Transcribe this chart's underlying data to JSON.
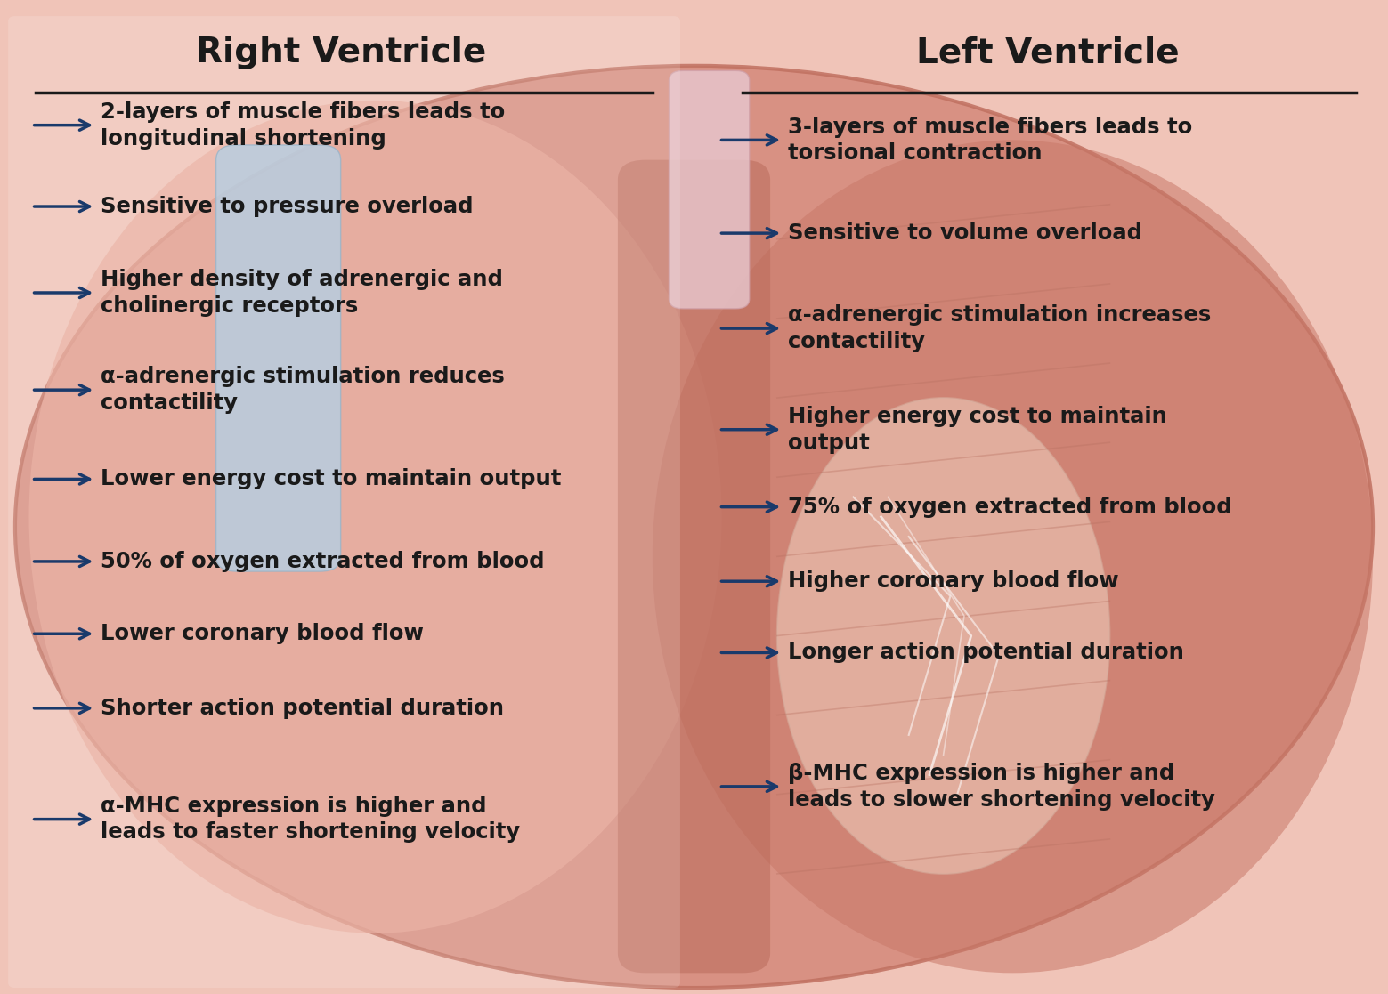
{
  "title_left": "Right Ventricle",
  "title_right": "Left Ventricle",
  "title_color": "#1a1a1a",
  "title_fontsize": 28,
  "arrow_color": "#1a3a6b",
  "text_color": "#1a1a1a",
  "text_fontsize": 17.5,
  "bg_color": "#f0c4b8",
  "left_items": [
    "2-layers of muscle fibers leads to\nlongitudinal shortening",
    "Sensitive to pressure overload",
    "Higher density of adrenergic and\ncholinergic receptors",
    "α-adrenergic stimulation reduces\ncontactility",
    "Lower energy cost to maintain output",
    "50% of oxygen extracted from blood",
    "Lower coronary blood flow",
    "Shorter action potential duration",
    "α-MHC expression is higher and\nleads to faster shortening velocity"
  ],
  "right_items": [
    "3-layers of muscle fibers leads to\ntorsional contraction",
    "Sensitive to volume overload",
    "α-adrenergic stimulation increases\ncontactility",
    "Higher energy cost to maintain\noutput",
    "75% of oxygen extracted from blood",
    "Higher coronary blood flow",
    "Longer action potential duration",
    "β-MHC expression is higher and\nleads to slower shortening velocity"
  ],
  "figsize": [
    15.59,
    11.17
  ],
  "dpi": 100
}
